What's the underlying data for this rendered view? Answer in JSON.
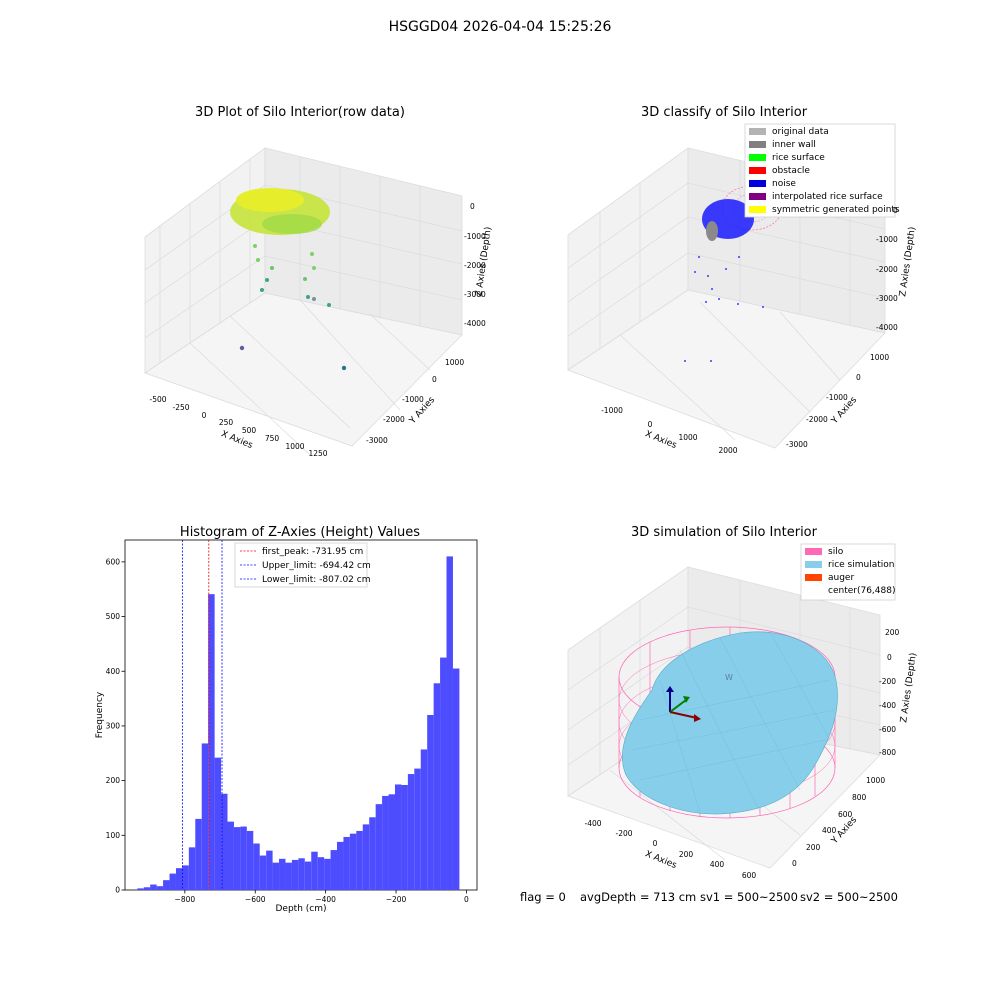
{
  "suptitle": "HSGGD04 2026-04-04 15:25:26",
  "footer": {
    "flag": "flag = 0",
    "avg_depth": "avgDepth = 713 cm",
    "sv1": "sv1 = 500~2500",
    "sv2": "sv2 = 500~2500"
  },
  "colors": {
    "hist_bar": "#4d4dff",
    "first_peak": "#ff0000",
    "limits": "#0000ff",
    "silo": "#ff69b4",
    "rice_sim": "#87ceeb",
    "auger": "#ff4500",
    "grid_pane": "#f2f2f2"
  },
  "panels": {
    "raw": {
      "title": "3D Plot of Silo Interior(row data)",
      "xlabel": "X Axies",
      "ylabel": "Y Axies",
      "zlabel": "Z Axies (Depth)",
      "x_ticks": [
        "-500",
        "-250",
        "0",
        "250",
        "500",
        "750",
        "1000",
        "1250"
      ],
      "y_ticks": [
        "1000",
        "0",
        "-1000",
        "-2000",
        "-3000"
      ],
      "z_ticks": [
        "0",
        "-1000",
        "-2000",
        "-3000",
        "-4000"
      ]
    },
    "classify": {
      "title": "3D classify of Silo Interior",
      "xlabel": "X Axies",
      "ylabel": "Y Axies",
      "zlabel": "Z Axies (Depth)",
      "x_ticks": [
        "-1000",
        "0",
        "1000",
        "2000"
      ],
      "y_ticks": [
        "1000",
        "0",
        "-1000",
        "-2000",
        "-3000"
      ],
      "z_ticks": [
        "0",
        "-1000",
        "-2000",
        "-3000",
        "-4000"
      ],
      "legend": [
        {
          "label": "original data",
          "color": "#b3b3b3"
        },
        {
          "label": "inner wall",
          "color": "#808080"
        },
        {
          "label": "rice surface",
          "color": "#00ff00"
        },
        {
          "label": "obstacle",
          "color": "#ff0000"
        },
        {
          "label": "noise",
          "color": "#0000dd"
        },
        {
          "label": "interpolated rice surface",
          "color": "#800080"
        },
        {
          "label": "symmetric generated points",
          "color": "#ffff00"
        }
      ]
    },
    "simulation": {
      "title": "3D simulation of Silo Interior",
      "xlabel": "X Axies",
      "ylabel": "Y Axies",
      "zlabel": "Z Axies (Depth)",
      "x_ticks": [
        "-400",
        "-200",
        "0",
        "200",
        "400",
        "600"
      ],
      "y_ticks": [
        "1000",
        "800",
        "600",
        "400",
        "200",
        "0"
      ],
      "z_ticks": [
        "200",
        "0",
        "-200",
        "-400",
        "-600",
        "-800"
      ],
      "legend": [
        {
          "label": "silo",
          "color": "#ff69b4"
        },
        {
          "label": "rice simulation",
          "color": "#87ceeb"
        },
        {
          "label": "auger",
          "color": "#ff4500"
        },
        {
          "label": "center(76,488)",
          "color": ""
        }
      ]
    }
  },
  "chart_data": {
    "type": "bar",
    "title": "Histogram of Z-Axies (Height) Values",
    "xlabel": "Depth (cm)",
    "ylabel": "Frequency",
    "xlim": [
      -970,
      30
    ],
    "ylim": [
      0,
      640
    ],
    "x_ticks": [
      -800,
      -600,
      -400,
      -200,
      0
    ],
    "y_ticks": [
      0,
      100,
      200,
      300,
      400,
      500,
      600
    ],
    "bin_edges_start": -935,
    "bin_width": 18.3,
    "values": [
      3,
      5,
      10,
      7,
      18,
      30,
      40,
      45,
      78,
      130,
      268,
      541,
      242,
      176,
      125,
      115,
      116,
      108,
      85,
      63,
      72,
      50,
      57,
      50,
      55,
      58,
      52,
      70,
      60,
      57,
      73,
      88,
      97,
      103,
      108,
      120,
      133,
      157,
      172,
      175,
      193,
      192,
      212,
      222,
      257,
      320,
      378,
      425,
      610,
      405
    ],
    "legend_position": "upper-center",
    "vlines": [
      {
        "label": "first_peak: -731.95 cm",
        "x": -731.95,
        "color": "#ff0000"
      },
      {
        "label": "Upper_limit: -694.42 cm",
        "x": -694.42,
        "color": "#0000ff"
      },
      {
        "label": "Lower_limit: -807.02 cm",
        "x": -807.02,
        "color": "#0000ff"
      }
    ]
  }
}
